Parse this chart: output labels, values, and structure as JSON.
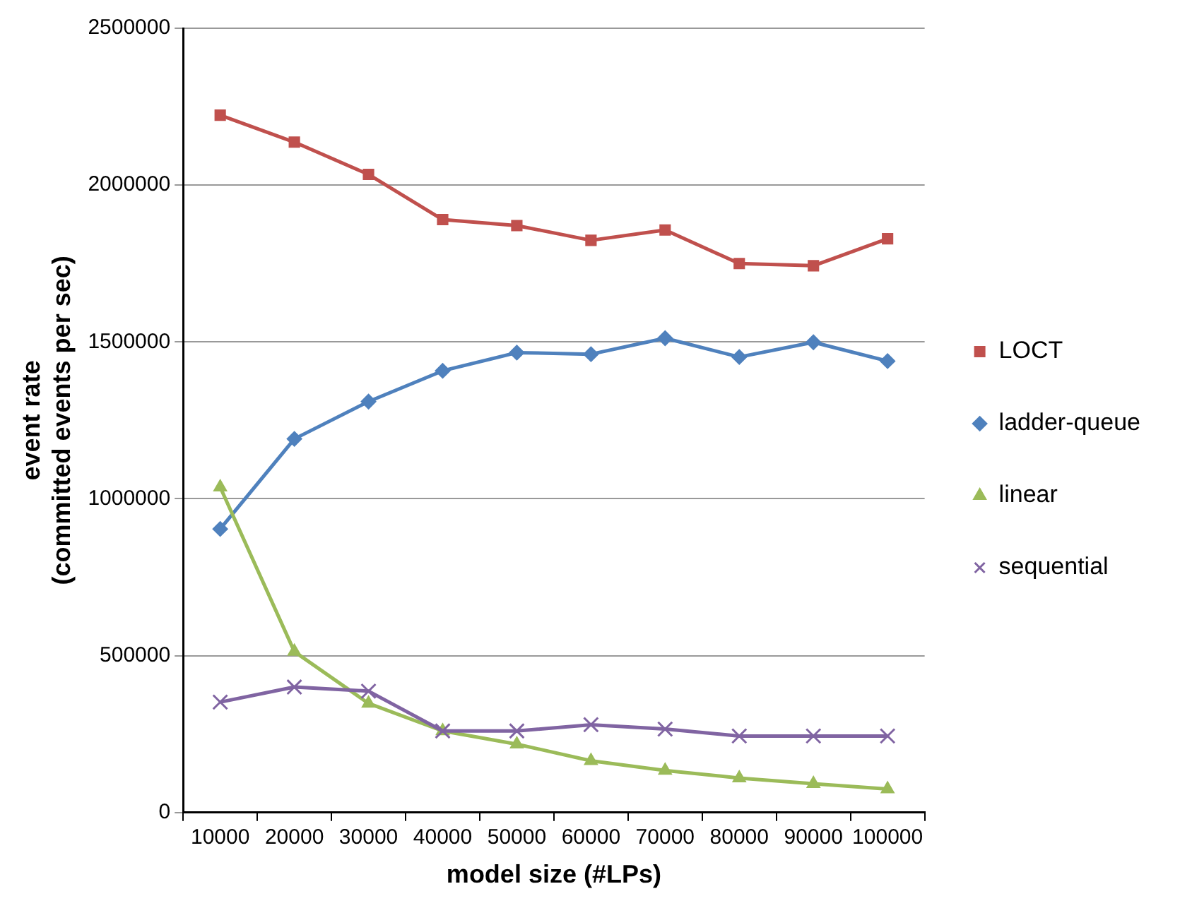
{
  "chart_data": {
    "type": "line",
    "xlabel": "model size (#LPs)",
    "ylabel": "event rate\n(committed events per sec)",
    "categories": [
      "10000",
      "20000",
      "30000",
      "40000",
      "50000",
      "60000",
      "70000",
      "80000",
      "90000",
      "100000"
    ],
    "series": [
      {
        "name": "LOCT",
        "color": "#c0504d",
        "marker": "square",
        "values": [
          2223000,
          2137000,
          2034000,
          1890000,
          1871000,
          1824000,
          1857000,
          1750000,
          1743000,
          1829000
        ]
      },
      {
        "name": "ladder-queue",
        "color": "#4f81bd",
        "marker": "diamond",
        "values": [
          904000,
          1191000,
          1310000,
          1408000,
          1466000,
          1461000,
          1512000,
          1452000,
          1499000,
          1439000
        ]
      },
      {
        "name": "linear",
        "color": "#9bbb59",
        "marker": "triangle",
        "values": [
          1037000,
          513000,
          348000,
          260000,
          218000,
          165000,
          134000,
          110000,
          92000,
          75000
        ]
      },
      {
        "name": "sequential",
        "color": "#8064a2",
        "marker": "cross",
        "values": [
          352000,
          400000,
          387000,
          260000,
          260000,
          280000,
          266000,
          244000,
          244000,
          244000
        ]
      }
    ],
    "ylim": [
      0,
      2500000
    ],
    "yticks": [
      0,
      500000,
      1000000,
      1500000,
      2000000,
      2500000
    ],
    "grid": "y",
    "legend": "right",
    "line_style": "solid"
  }
}
